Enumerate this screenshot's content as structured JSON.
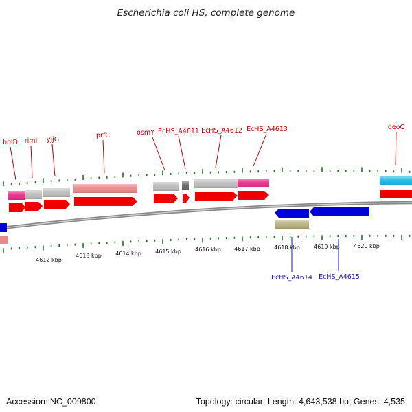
{
  "title": "Escherichia coli HS, complete genome",
  "footer": {
    "accession": "Accession: NC_009800",
    "stats": "Topology: circular; Length: 4,643,538 bp; Genes: 4,535"
  },
  "axis": {
    "unit_label": "kbp",
    "labels": [
      "4612 kbp",
      "4613 kbp",
      "4614 kbp",
      "4615 kbp",
      "4616 kbp",
      "4617 kbp",
      "4618 kbp",
      "4619 kbp",
      "4620 kbp"
    ]
  },
  "gene_labels_top": [
    "holD",
    "rimI",
    "yjjG",
    "prfC",
    "osmY",
    "EcHS_A4611",
    "EcHS_A4612",
    "EcHS_A4613",
    "deoC"
  ],
  "gene_labels_bottom": [
    "EcHS_A4614",
    "EcHS_A4615"
  ],
  "colors": {
    "label_top": "#c00000",
    "label_bottom": "#1a1aa8",
    "cds_forward": "#ee0000",
    "cds_reverse": "#0000dd",
    "feature_gray": "#bdbdbd",
    "feature_pink": "#e8308a",
    "feature_salmon": "#e98a8a",
    "feature_cyan": "#19b7e8",
    "feature_olive": "#b8b27a",
    "feature_dark": "#666666",
    "backbone": "#888888",
    "tick": "#227a22"
  }
}
